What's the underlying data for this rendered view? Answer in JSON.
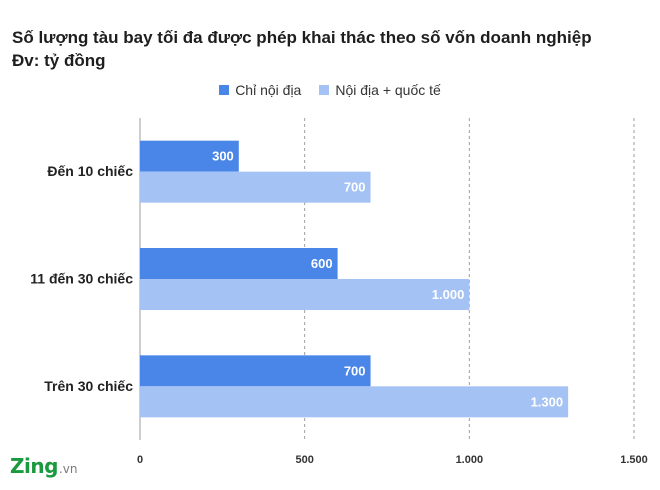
{
  "title_line1": "Số lượng tàu bay tối đa được phép khai thác theo số vốn doanh nghiệp",
  "title_line2": "Đv: tỷ đồng",
  "logo": {
    "main": "Zing",
    "tld": ".vn"
  },
  "chart_data": {
    "type": "bar",
    "orientation": "horizontal",
    "categories": [
      "Đến 10 chiếc",
      "11 đến 30 chiếc",
      "Trên 30 chiếc"
    ],
    "series": [
      {
        "name": "Chỉ nội địa",
        "color": "#4a86e8",
        "values": [
          300,
          600,
          700
        ],
        "labels": [
          "300",
          "600",
          "700"
        ]
      },
      {
        "name": "Nội địa + quốc tế",
        "color": "#a4c2f4",
        "values": [
          700,
          1000,
          1300
        ],
        "labels": [
          "700",
          "1.000",
          "1.300"
        ]
      }
    ],
    "xlim": [
      0,
      1500
    ],
    "xticks": [
      0,
      500,
      1000,
      1500
    ],
    "xtick_labels": [
      "0",
      "500",
      "1.000",
      "1.500"
    ],
    "grid": "vertical-dashed",
    "legend": "top-center"
  }
}
